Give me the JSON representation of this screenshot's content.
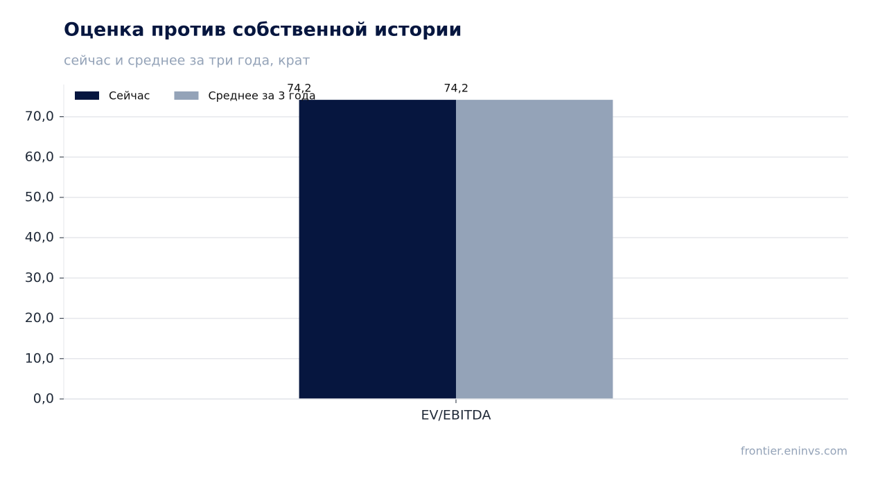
{
  "chart_data": {
    "type": "bar",
    "title": "Оценка против собственной истории",
    "subtitle": "сейчас и среднее за три года, крат",
    "source": "frontier.eninvs.com",
    "categories": [
      "EV/EBITDA"
    ],
    "series": [
      {
        "name": "Сейчас",
        "color": "#06163f",
        "values": [
          74.2
        ],
        "value_labels": [
          "74,2"
        ]
      },
      {
        "name": "Среднее за 3 года",
        "color": "#94a3b8",
        "values": [
          74.2
        ],
        "value_labels": [
          "74,2"
        ]
      }
    ],
    "ylim": [
      0,
      78
    ],
    "yticks": [
      {
        "value": 0,
        "label": "0,0"
      },
      {
        "value": 10,
        "label": "10,0"
      },
      {
        "value": 20,
        "label": "20,0"
      },
      {
        "value": 30,
        "label": "30,0"
      },
      {
        "value": 40,
        "label": "40,0"
      },
      {
        "value": 50,
        "label": "50,0"
      },
      {
        "value": 60,
        "label": "60,0"
      },
      {
        "value": 70,
        "label": "70,0"
      }
    ],
    "grid": true,
    "legend": "upper-left"
  }
}
